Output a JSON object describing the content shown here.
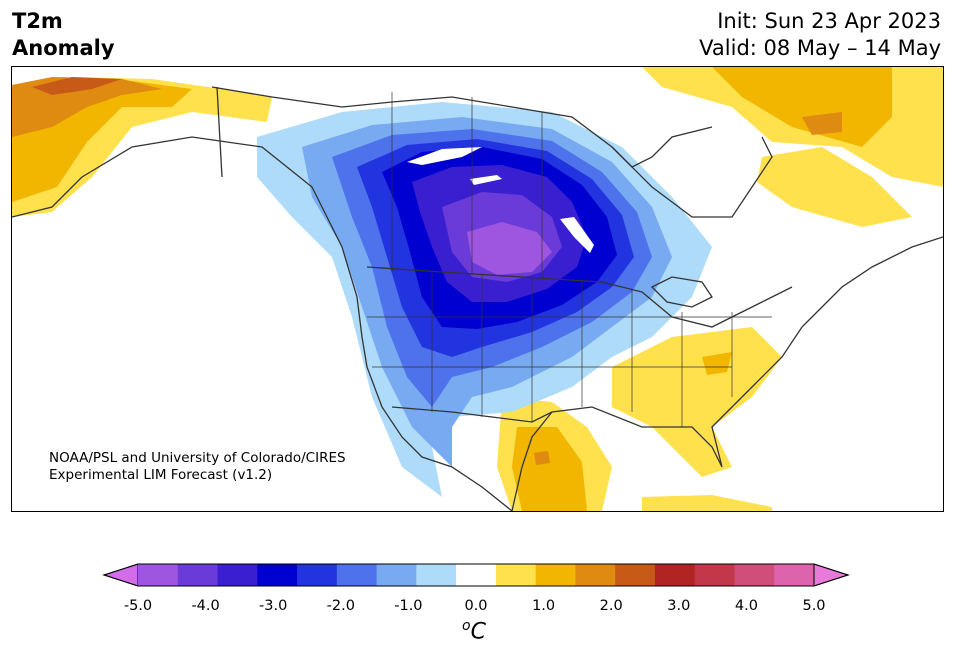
{
  "header": {
    "title_line1": "T2m",
    "title_line2": "Anomaly",
    "init": "Init: Sun 23 Apr 2023",
    "valid": "Valid: 08 May – 14 May"
  },
  "credit": {
    "line1": "NOAA/PSL and University of Colorado/CIRES",
    "line2": "Experimental LIM Forecast (v1.2)"
  },
  "colorbar": {
    "unit_base": "C",
    "unit_sup": "o",
    "tick_labels": [
      "-5.0",
      "-4.0",
      "-3.0",
      "-2.0",
      "-1.0",
      "0.0",
      "1.0",
      "2.0",
      "3.0",
      "4.0",
      "5.0"
    ],
    "colors": [
      "#d36ce8",
      "#9e55e0",
      "#6a3bd9",
      "#3a1fd0",
      "#0000d0",
      "#2233e0",
      "#4e72ec",
      "#78aaf2",
      "#aedbfa",
      "#ffffff",
      "#ffe14e",
      "#f2b600",
      "#df8a10",
      "#c85a17",
      "#b02424",
      "#c2384a",
      "#cf4f7a",
      "#dd63ad",
      "#e97ad9"
    ]
  }
}
